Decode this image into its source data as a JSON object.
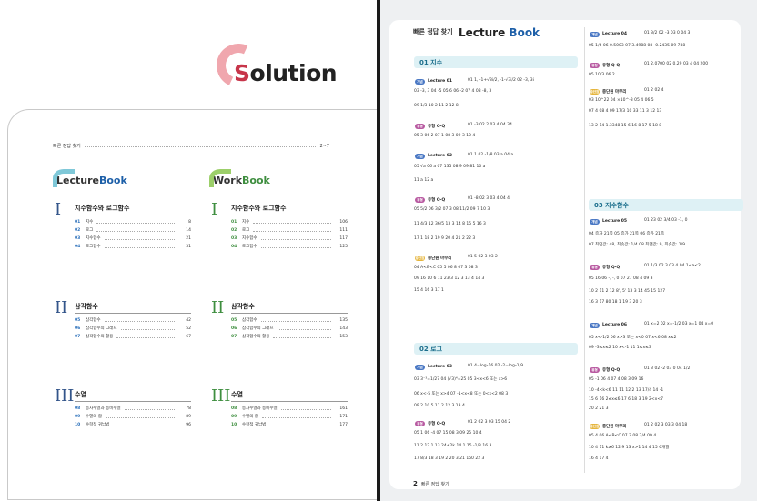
{
  "left": {
    "title": "Solution",
    "toc_label": "빠른 정답 찾기",
    "toc_pages": "2~7",
    "lecture_logo": [
      "Lecture",
      "Book"
    ],
    "work_logo": [
      "Work",
      "Book"
    ],
    "lecture": [
      {
        "num": "I",
        "title": "지수함수와 로그함수",
        "items": [
          {
            "n": "01",
            "t": "지수",
            "p": "8"
          },
          {
            "n": "02",
            "t": "로그",
            "p": "14"
          },
          {
            "n": "03",
            "t": "지수함수",
            "p": "21"
          },
          {
            "n": "04",
            "t": "로그함수",
            "p": "31"
          }
        ]
      },
      {
        "num": "II",
        "title": "삼각함수",
        "items": [
          {
            "n": "05",
            "t": "삼각함수",
            "p": "42"
          },
          {
            "n": "06",
            "t": "삼각함수의 그래프",
            "p": "52"
          },
          {
            "n": "07",
            "t": "삼각함수의 활용",
            "p": "67"
          }
        ]
      },
      {
        "num": "III",
        "title": "수열",
        "items": [
          {
            "n": "08",
            "t": "등차수열과 등비수열",
            "p": "78"
          },
          {
            "n": "09",
            "t": "수열의 합",
            "p": "89"
          },
          {
            "n": "10",
            "t": "수학적 귀납법",
            "p": "96"
          }
        ]
      }
    ],
    "work": [
      {
        "num": "I",
        "title": "지수함수와 로그함수",
        "items": [
          {
            "n": "01",
            "t": "지수",
            "p": "106"
          },
          {
            "n": "02",
            "t": "로그",
            "p": "111"
          },
          {
            "n": "03",
            "t": "지수함수",
            "p": "117"
          },
          {
            "n": "04",
            "t": "로그함수",
            "p": "125"
          }
        ]
      },
      {
        "num": "II",
        "title": "삼각함수",
        "items": [
          {
            "n": "05",
            "t": "삼각함수",
            "p": "135"
          },
          {
            "n": "06",
            "t": "삼각함수의 그래프",
            "p": "143"
          },
          {
            "n": "07",
            "t": "삼각함수의 활용",
            "p": "153"
          }
        ]
      },
      {
        "num": "III",
        "title": "수열",
        "items": [
          {
            "n": "08",
            "t": "등차수열과 등비수열",
            "p": "161"
          },
          {
            "n": "09",
            "t": "수열의 합",
            "p": "171"
          },
          {
            "n": "10",
            "t": "수학적 귀납법",
            "p": "177"
          }
        ]
      }
    ]
  },
  "right": {
    "header": "빠른 정답 찾기",
    "logo": [
      "Lecture",
      "Book"
    ],
    "footer_num": "2",
    "footer_text": "빠른 정답 찾기",
    "chapters": [
      {
        "label": "01 지수"
      },
      {
        "label": "02 로그"
      },
      {
        "label": "03 지수함수"
      }
    ],
    "lectures": [
      {
        "badge": "개념",
        "text": "Lecture 01"
      },
      {
        "badge": "유형",
        "text": "유형 Q·Q"
      },
      {
        "badge": "개념",
        "text": "Lecture 02"
      },
      {
        "badge": "유형",
        "text": "유형 Q·Q"
      },
      {
        "badge": "중단원",
        "text": "중단원 마무리"
      },
      {
        "badge": "개념",
        "text": "Lecture 03"
      },
      {
        "badge": "유형",
        "text": "유형 Q·Q"
      },
      {
        "badge": "개념",
        "text": "Lecture 04"
      },
      {
        "badge": "유형",
        "text": "유형 Q·Q"
      },
      {
        "badge": "중단원",
        "text": "중단원 마무리"
      },
      {
        "badge": "개념",
        "text": "Lecture 05"
      },
      {
        "badge": "유형",
        "text": "유형 Q·Q"
      },
      {
        "badge": "개념",
        "text": "Lecture 06"
      },
      {
        "badge": "유형",
        "text": "유형 Q·Q"
      },
      {
        "badge": "중단원",
        "text": "중단원 마무리"
      }
    ],
    "answers": [
      {
        "n": "01",
        "v": "1, -1+√3i/2, -1-√3i/2"
      },
      {
        "n": "02",
        "v": "-3, 3i"
      },
      {
        "n": "03",
        "v": "-3, 3"
      },
      {
        "n": "04",
        "v": "-5"
      },
      {
        "n": "05",
        "v": "6"
      },
      {
        "n": "06",
        "v": "-2"
      },
      {
        "n": "07",
        "v": "4"
      },
      {
        "n": "08",
        "v": "-8, 3"
      },
      {
        "n": "09",
        "v": "1/3"
      },
      {
        "n": "10",
        "v": "2"
      },
      {
        "n": "11",
        "v": "2"
      },
      {
        "n": "12",
        "v": "8"
      },
      {
        "n": "01",
        "v": "-3"
      },
      {
        "n": "02",
        "v": "2"
      },
      {
        "n": "03",
        "v": "4"
      },
      {
        "n": "04",
        "v": "34"
      },
      {
        "n": "05",
        "v": "3"
      },
      {
        "n": "06",
        "v": "2"
      },
      {
        "n": "07",
        "v": "1"
      },
      {
        "n": "08",
        "v": "3"
      },
      {
        "n": "09",
        "v": "3"
      },
      {
        "n": "10",
        "v": "4"
      },
      {
        "n": "01",
        "v": "1"
      },
      {
        "n": "02",
        "v": "-1/8"
      },
      {
        "n": "03",
        "v": "a"
      },
      {
        "n": "04",
        "v": "a"
      },
      {
        "n": "05",
        "v": "√a"
      },
      {
        "n": "06",
        "v": "a"
      },
      {
        "n": "07",
        "v": "135"
      },
      {
        "n": "08",
        "v": "9"
      },
      {
        "n": "09",
        "v": "81"
      },
      {
        "n": "10",
        "v": "a"
      },
      {
        "n": "11",
        "v": "a"
      },
      {
        "n": "12",
        "v": "a"
      },
      {
        "n": "01",
        "v": "-8"
      },
      {
        "n": "02",
        "v": "3"
      },
      {
        "n": "03",
        "v": "4"
      },
      {
        "n": "04",
        "v": "4"
      },
      {
        "n": "05",
        "v": "5/2"
      },
      {
        "n": "06",
        "v": "3/2"
      },
      {
        "n": "07",
        "v": "3"
      },
      {
        "n": "08",
        "v": "11/2"
      },
      {
        "n": "09",
        "v": "7"
      },
      {
        "n": "10",
        "v": "3"
      },
      {
        "n": "11",
        "v": "4/3"
      },
      {
        "n": "12",
        "v": "36/5"
      },
      {
        "n": "13",
        "v": "3"
      },
      {
        "n": "14",
        "v": "8"
      },
      {
        "n": "15",
        "v": "5"
      },
      {
        "n": "16",
        "v": "3"
      },
      {
        "n": "17",
        "v": "1"
      },
      {
        "n": "18",
        "v": "2"
      },
      {
        "n": "19",
        "v": "9"
      },
      {
        "n": "20",
        "v": "4"
      },
      {
        "n": "21",
        "v": "2"
      },
      {
        "n": "22",
        "v": "3"
      },
      {
        "n": "01",
        "v": "5"
      },
      {
        "n": "02",
        "v": "3"
      },
      {
        "n": "03",
        "v": "2"
      },
      {
        "n": "04",
        "v": "A<B<C"
      },
      {
        "n": "05",
        "v": "5"
      },
      {
        "n": "06",
        "v": "8"
      },
      {
        "n": "07",
        "v": "3"
      },
      {
        "n": "08",
        "v": "3"
      },
      {
        "n": "09",
        "v": "16"
      },
      {
        "n": "10",
        "v": "6"
      },
      {
        "n": "11",
        "v": "23/3"
      },
      {
        "n": "12",
        "v": "3"
      },
      {
        "n": "13",
        "v": "4"
      },
      {
        "n": "14",
        "v": "3"
      },
      {
        "n": "15",
        "v": "4"
      },
      {
        "n": "16",
        "v": "3"
      },
      {
        "n": "17",
        "v": "1"
      }
    ],
    "col1_rows": [
      "01 1, -1+√3i/2, -1-√3i/2 02 -3, 3i",
      "03 -3, 3  04 -5  05 6  06 -2  07 4  08 -8, 3",
      "09 1/3  10 2  11 2  12 8",
      "01 -3  02 2  03 4  04 34",
      "05 3  06 2  07 1  08 3  09 3  10 4",
      "01 1  02 -1/8  03 a  04 a",
      "05 √a  06 a  07 135  08 9  09 81  10 a",
      "11 a  12 a",
      "01 -8  02 3  03 4  04 4",
      "05 5/2  06 3/2  07 3  08 11/2  09 7  10 3",
      "11 4/3  12 36/5  13 3  14 8  15 5  16 3",
      "17 1  18 2  19 9  20 4  21 2  22 3",
      "01 5  02 3  03 2",
      "04 A<B<C  05 5  06 8  07 3  08 3",
      "09 16  10 6  11 23/3  12 3  13 4  14 3",
      "15 4  16 3  17 1",
      "01 4=log₂16  02 -2=log₃1/9",
      "03 3⁻³=1/27  04 (√3)⁴=25  05 3<x<6 또는 x>6",
      "06 x<-5 또는 x>4  07 -1<x<8 또는 0<x<2  08 3",
      "09 2  10 5  11 2  12 3  13 4",
      "01 2  02 3  03 15  04 2",
      "05 1  06 -4  07 15  08 3  09 25  10 4",
      "11 2  12 1  13 24+2k  14 1  15 -1/3  16 3",
      "17 8/3  18 3  19 2  20 3  21 150  22 3"
    ],
    "col2_rows": [
      "01 3/2  02 -3  03 0  04 3",
      "05 1/6  06 0.5003  07 3.4988  08 -0.2435  09 788",
      "01 2.0700  02 0.29  03 4  04 200",
      "05 10/3  06 2",
      "01 2  02 4",
      "03 10^22  04 ×10^-3  05 4  06 5",
      "07 4  08 4  09 17/3  10 33  11 3  12 13",
      "13 2  14 1.3348  15 6  16 8  17 5  18 8",
      "01 23  02 3/4  03 -1, 0",
      "04 증가 21쪽  05 증가 21쪽  06 증가 21쪽",
      "07 최댓값: 48, 최솟값: 1/4  08 최댓값: 9, 최솟값: 1/9",
      "01 1/3  02 3  03 4  04 1<a<2",
      "05 16  06 -, -, 0  07 27  08 4  09 3",
      "10 2  11 2  12 8', 5'  13 3  14 45  15 127",
      "16 3  17 80  18 1  19 3  20 3",
      "01 x=2  02 x=-1/2  03 x=1  04 x=0",
      "05 x<-1/2  06 x>3 또는 x<0  07 x<6  08 x≤2",
      "09 -3≤x≤2  10 x<-1  11 1≤x≤3",
      "01 3  02 -2  03 0  04 1/2",
      "05 -1  06 4  07 4  08 3  09 16",
      "10 -4<k<6  11 11  12 2  13 17/4  14 -1",
      "15 6  16 2≤x≤6  17 6  18 3  19 2<x<7",
      "20 2  21 3",
      "01 2  02 3  03 3  04 18",
      "05 4  06 A<B<C  07 3  08 7/4  09 4",
      "10 4  11 k≥6  12 9  13 x>1  14 4  15 6개월",
      "16 4  17 4"
    ]
  }
}
